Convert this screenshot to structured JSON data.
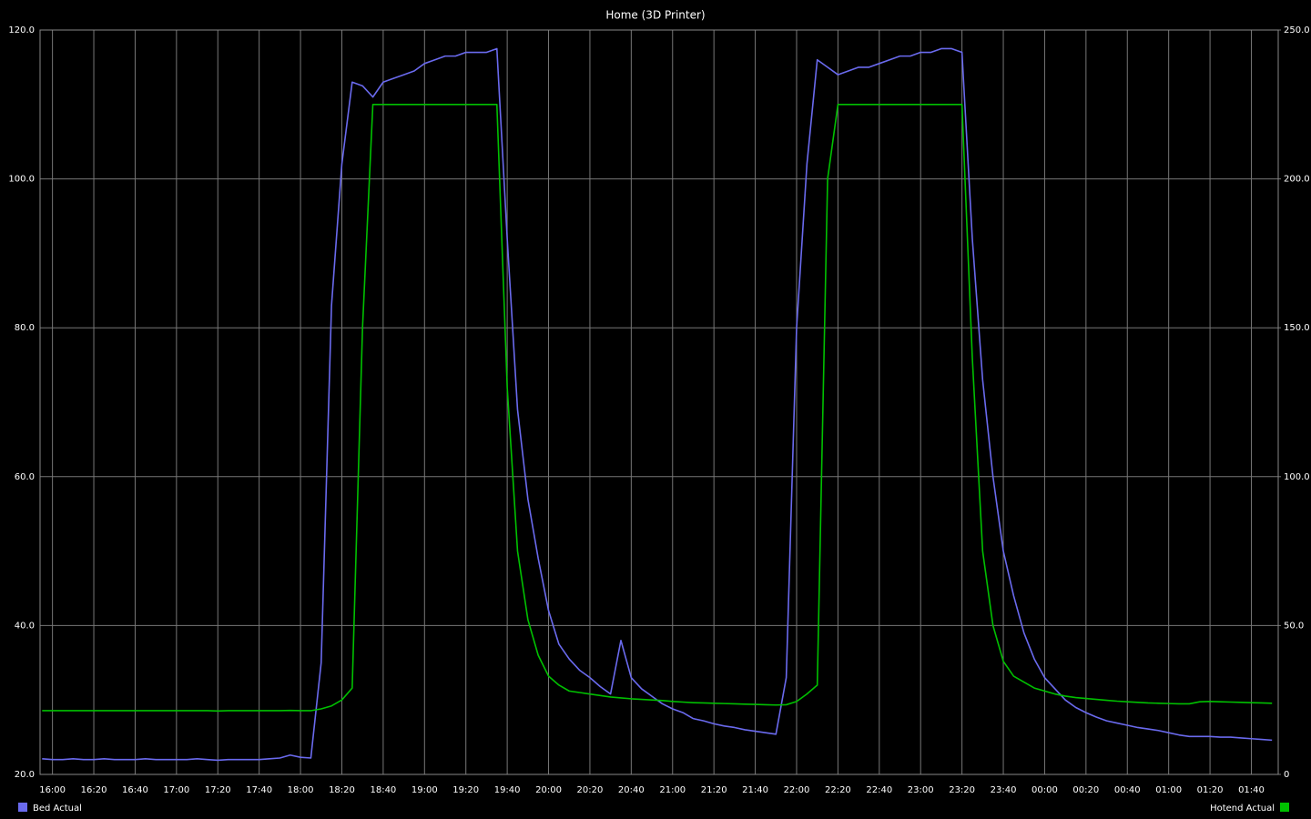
{
  "chart_data": {
    "type": "line",
    "title": "Home (3D Printer)",
    "x": [
      -5,
      0,
      5,
      10,
      15,
      20,
      25,
      30,
      35,
      40,
      45,
      50,
      55,
      60,
      65,
      70,
      75,
      80,
      85,
      90,
      95,
      100,
      105,
      110,
      115,
      120,
      125,
      130,
      135,
      140,
      145,
      150,
      155,
      160,
      165,
      170,
      175,
      180,
      185,
      190,
      195,
      200,
      205,
      210,
      215,
      220,
      225,
      230,
      235,
      240,
      245,
      250,
      255,
      260,
      265,
      270,
      275,
      280,
      285,
      290,
      295,
      300,
      305,
      310,
      315,
      320,
      325,
      330,
      335,
      340,
      345,
      350,
      355,
      360,
      365,
      370,
      375,
      380,
      385,
      390,
      395,
      400,
      405,
      410,
      415,
      420,
      425,
      430,
      435,
      440,
      445,
      450,
      455,
      460,
      465,
      470,
      475,
      480,
      485,
      490,
      495,
      500,
      505,
      510,
      515,
      520,
      525,
      530,
      535,
      540,
      545,
      550,
      555,
      560,
      565,
      570,
      575,
      580,
      585,
      590
    ],
    "xlim": [
      -6,
      593
    ],
    "xticks": [
      {
        "value": 0,
        "label": "16:00"
      },
      {
        "value": 20,
        "label": "16:20"
      },
      {
        "value": 40,
        "label": "16:40"
      },
      {
        "value": 60,
        "label": "17:00"
      },
      {
        "value": 80,
        "label": "17:20"
      },
      {
        "value": 100,
        "label": "17:40"
      },
      {
        "value": 120,
        "label": "18:00"
      },
      {
        "value": 140,
        "label": "18:20"
      },
      {
        "value": 160,
        "label": "18:40"
      },
      {
        "value": 180,
        "label": "19:00"
      },
      {
        "value": 200,
        "label": "19:20"
      },
      {
        "value": 220,
        "label": "19:40"
      },
      {
        "value": 240,
        "label": "20:00"
      },
      {
        "value": 260,
        "label": "20:20"
      },
      {
        "value": 280,
        "label": "20:40"
      },
      {
        "value": 300,
        "label": "21:00"
      },
      {
        "value": 320,
        "label": "21:20"
      },
      {
        "value": 340,
        "label": "21:40"
      },
      {
        "value": 360,
        "label": "22:00"
      },
      {
        "value": 380,
        "label": "22:20"
      },
      {
        "value": 400,
        "label": "22:40"
      },
      {
        "value": 420,
        "label": "23:00"
      },
      {
        "value": 440,
        "label": "23:20"
      },
      {
        "value": 460,
        "label": "23:40"
      },
      {
        "value": 480,
        "label": "00:00"
      },
      {
        "value": 500,
        "label": "00:20"
      },
      {
        "value": 520,
        "label": "00:40"
      },
      {
        "value": 540,
        "label": "01:00"
      },
      {
        "value": 560,
        "label": "01:20"
      },
      {
        "value": 580,
        "label": "01:40"
      }
    ],
    "ylim": [
      20,
      120
    ],
    "yticks": [
      {
        "value": 20,
        "label": "20.0"
      },
      {
        "value": 40,
        "label": "40.0"
      },
      {
        "value": 60,
        "label": "60.0"
      },
      {
        "value": 80,
        "label": "80.0"
      },
      {
        "value": 100,
        "label": "100.0"
      },
      {
        "value": 120,
        "label": "120.0"
      }
    ],
    "y2lim": [
      0,
      250
    ],
    "y2ticks": [
      0,
      {
        "value": 50,
        "label": "50.0"
      },
      {
        "value": 100,
        "label": "100.0"
      },
      {
        "value": 150,
        "label": "150.0"
      },
      {
        "value": 200,
        "label": "200.0"
      },
      {
        "value": 250,
        "label": "250.0"
      }
    ],
    "grid": true,
    "legend": "bottom",
    "series": [
      {
        "name": "Bed Actual",
        "color": "#6a6aee",
        "values": [
          22.1,
          22.0,
          22.0,
          22.1,
          22.0,
          22.0,
          22.1,
          22.0,
          22.0,
          22.0,
          22.1,
          22.0,
          22.0,
          22.0,
          22.0,
          22.1,
          22.0,
          21.9,
          22.0,
          22.0,
          22.0,
          22.0,
          22.1,
          22.2,
          22.6,
          22.3,
          22.2,
          35,
          83,
          102,
          113,
          112.5,
          111,
          113,
          113.5,
          114,
          114.5,
          115.5,
          116,
          116.5,
          116.5,
          117,
          117,
          117,
          117.5,
          92,
          69,
          57,
          49,
          42,
          37.5,
          35.5,
          34,
          33,
          31.8,
          30.8,
          38,
          33,
          31.5,
          30.5,
          29.5,
          28.8,
          28.3,
          27.5,
          27.2,
          26.8,
          26.5,
          26.3,
          26.0,
          25.8,
          25.6,
          25.4,
          33,
          80,
          102,
          116,
          115,
          114,
          114.5,
          115,
          115,
          115.5,
          116,
          116.5,
          116.5,
          117,
          117,
          117.5,
          117.5,
          117,
          92,
          73,
          60,
          50,
          44,
          39,
          35.5,
          33,
          31.5,
          30,
          29,
          28.3,
          27.7,
          27.2,
          26.9,
          26.6,
          26.3,
          26.1,
          25.9,
          25.6,
          25.3,
          25.1,
          25.1,
          25.1,
          25.0,
          25.0,
          24.9,
          24.8,
          24.7,
          24.6
        ]
      },
      {
        "name": "Hotend Actual",
        "color": "#00c000",
        "axis": "y2",
        "values": [
          21.4,
          21.4,
          21.4,
          21.4,
          21.4,
          21.4,
          21.4,
          21.4,
          21.4,
          21.4,
          21.4,
          21.4,
          21.4,
          21.4,
          21.4,
          21.4,
          21.4,
          21.3,
          21.4,
          21.4,
          21.4,
          21.4,
          21.4,
          21.4,
          21.5,
          21.4,
          21.4,
          22,
          23,
          25,
          29,
          150,
          225,
          225,
          225,
          225,
          225,
          225,
          225,
          225,
          225,
          225,
          225,
          225,
          225,
          130,
          75,
          52,
          40,
          33,
          30,
          28,
          27.5,
          27,
          26.5,
          26,
          25.7,
          25.4,
          25.2,
          25,
          24.8,
          24.5,
          24.3,
          24.1,
          24,
          23.9,
          23.8,
          23.7,
          23.6,
          23.5,
          23.4,
          23.3,
          23.4,
          24.5,
          27,
          30,
          200,
          225,
          225,
          225,
          225,
          225,
          225,
          225,
          225,
          225,
          225,
          225,
          225,
          225,
          140,
          75,
          50,
          38,
          33,
          31,
          29,
          28,
          27,
          26.3,
          25.8,
          25.5,
          25.2,
          24.9,
          24.6,
          24.4,
          24.2,
          24,
          23.9,
          23.8,
          23.7,
          23.7,
          24.4,
          24.5,
          24.4,
          24.3,
          24.2,
          24.1,
          24.0,
          23.9
        ]
      }
    ]
  }
}
